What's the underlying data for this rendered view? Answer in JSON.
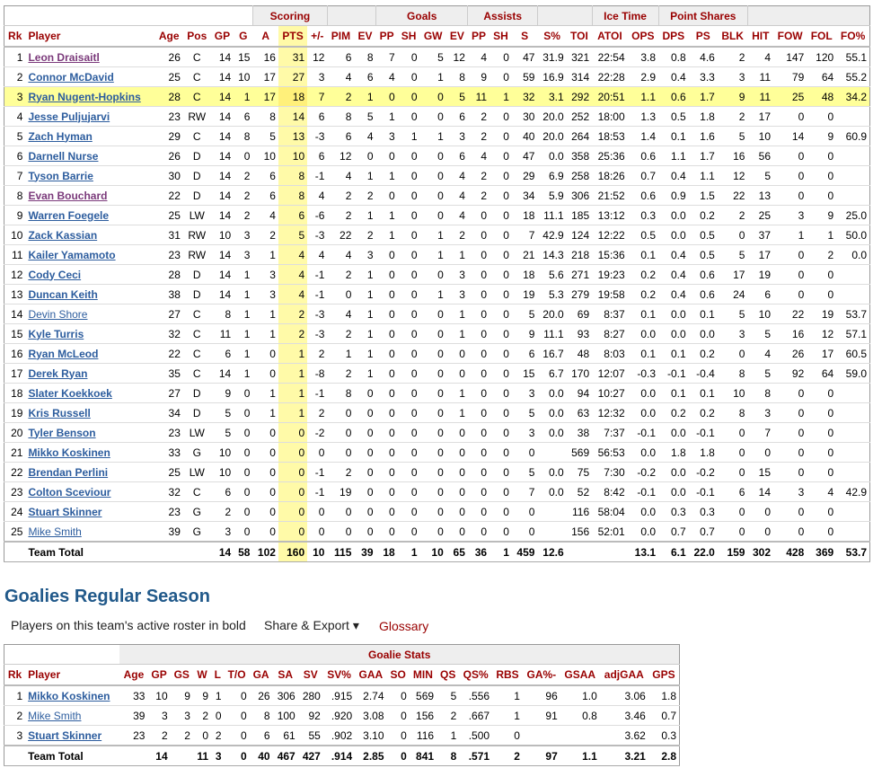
{
  "skaters": {
    "groups": [
      {
        "label": "",
        "span": 6
      },
      {
        "label": "Scoring",
        "span": 3
      },
      {
        "label": "",
        "span": 2
      },
      {
        "label": "Goals",
        "span": 4
      },
      {
        "label": "Assists",
        "span": 3
      },
      {
        "label": "",
        "span": 2
      },
      {
        "label": "Ice Time",
        "span": 2
      },
      {
        "label": "Point Shares",
        "span": 3
      },
      {
        "label": "",
        "span": 5
      }
    ],
    "columns": [
      "Rk",
      "Player",
      "Age",
      "Pos",
      "GP",
      "G",
      "A",
      "PTS",
      "+/-",
      "PIM",
      "EV",
      "PP",
      "SH",
      "GW",
      "EV",
      "PP",
      "SH",
      "S",
      "S%",
      "TOI",
      "ATOI",
      "OPS",
      "DPS",
      "PS",
      "BLK",
      "HIT",
      "FOW",
      "FOL",
      "FO%"
    ],
    "rows": [
      {
        "cells": [
          "1",
          "Leon Draisaitl",
          "26",
          "C",
          "14",
          "15",
          "16",
          "31",
          "12",
          "6",
          "8",
          "7",
          "0",
          "5",
          "12",
          "4",
          "0",
          "47",
          "31.9",
          "321",
          "22:54",
          "3.8",
          "0.8",
          "4.6",
          "2",
          "4",
          "147",
          "120",
          "55.1"
        ],
        "style": "pu"
      },
      {
        "cells": [
          "2",
          "Connor McDavid",
          "25",
          "C",
          "14",
          "10",
          "17",
          "27",
          "3",
          "4",
          "6",
          "4",
          "0",
          "1",
          "8",
          "9",
          "0",
          "59",
          "16.9",
          "314",
          "22:28",
          "2.9",
          "0.4",
          "3.3",
          "3",
          "11",
          "79",
          "64",
          "55.2"
        ],
        "style": ""
      },
      {
        "cells": [
          "3",
          "Ryan Nugent-Hopkins",
          "28",
          "C",
          "14",
          "1",
          "17",
          "18",
          "7",
          "2",
          "1",
          "0",
          "0",
          "0",
          "5",
          "11",
          "1",
          "32",
          "3.1",
          "292",
          "20:51",
          "1.1",
          "0.6",
          "1.7",
          "9",
          "11",
          "25",
          "48",
          "34.2"
        ],
        "style": "hl"
      },
      {
        "cells": [
          "4",
          "Jesse Puljujarvi",
          "23",
          "RW",
          "14",
          "6",
          "8",
          "14",
          "6",
          "8",
          "5",
          "1",
          "0",
          "0",
          "6",
          "2",
          "0",
          "30",
          "20.0",
          "252",
          "18:00",
          "1.3",
          "0.5",
          "1.8",
          "2",
          "17",
          "0",
          "0",
          ""
        ],
        "style": ""
      },
      {
        "cells": [
          "5",
          "Zach Hyman",
          "29",
          "C",
          "14",
          "8",
          "5",
          "13",
          "-3",
          "6",
          "4",
          "3",
          "1",
          "1",
          "3",
          "2",
          "0",
          "40",
          "20.0",
          "264",
          "18:53",
          "1.4",
          "0.1",
          "1.6",
          "5",
          "10",
          "14",
          "9",
          "60.9"
        ],
        "style": ""
      },
      {
        "cells": [
          "6",
          "Darnell Nurse",
          "26",
          "D",
          "14",
          "0",
          "10",
          "10",
          "6",
          "12",
          "0",
          "0",
          "0",
          "0",
          "6",
          "4",
          "0",
          "47",
          "0.0",
          "358",
          "25:36",
          "0.6",
          "1.1",
          "1.7",
          "16",
          "56",
          "0",
          "0",
          ""
        ],
        "style": ""
      },
      {
        "cells": [
          "7",
          "Tyson Barrie",
          "30",
          "D",
          "14",
          "2",
          "6",
          "8",
          "-1",
          "4",
          "1",
          "1",
          "0",
          "0",
          "4",
          "2",
          "0",
          "29",
          "6.9",
          "258",
          "18:26",
          "0.7",
          "0.4",
          "1.1",
          "12",
          "5",
          "0",
          "0",
          ""
        ],
        "style": ""
      },
      {
        "cells": [
          "8",
          "Evan Bouchard",
          "22",
          "D",
          "14",
          "2",
          "6",
          "8",
          "4",
          "2",
          "2",
          "0",
          "0",
          "0",
          "4",
          "2",
          "0",
          "34",
          "5.9",
          "306",
          "21:52",
          "0.6",
          "0.9",
          "1.5",
          "22",
          "13",
          "0",
          "0",
          ""
        ],
        "style": "pu"
      },
      {
        "cells": [
          "9",
          "Warren Foegele",
          "25",
          "LW",
          "14",
          "2",
          "4",
          "6",
          "-6",
          "2",
          "1",
          "1",
          "0",
          "0",
          "4",
          "0",
          "0",
          "18",
          "11.1",
          "185",
          "13:12",
          "0.3",
          "0.0",
          "0.2",
          "2",
          "25",
          "3",
          "9",
          "25.0"
        ],
        "style": ""
      },
      {
        "cells": [
          "10",
          "Zack Kassian",
          "31",
          "RW",
          "10",
          "3",
          "2",
          "5",
          "-3",
          "22",
          "2",
          "1",
          "0",
          "1",
          "2",
          "0",
          "0",
          "7",
          "42.9",
          "124",
          "12:22",
          "0.5",
          "0.0",
          "0.5",
          "0",
          "37",
          "1",
          "1",
          "50.0"
        ],
        "style": ""
      },
      {
        "cells": [
          "11",
          "Kailer Yamamoto",
          "23",
          "RW",
          "14",
          "3",
          "1",
          "4",
          "4",
          "4",
          "3",
          "0",
          "0",
          "1",
          "1",
          "0",
          "0",
          "21",
          "14.3",
          "218",
          "15:36",
          "0.1",
          "0.4",
          "0.5",
          "5",
          "17",
          "0",
          "2",
          "0.0"
        ],
        "style": ""
      },
      {
        "cells": [
          "12",
          "Cody Ceci",
          "28",
          "D",
          "14",
          "1",
          "3",
          "4",
          "-1",
          "2",
          "1",
          "0",
          "0",
          "0",
          "3",
          "0",
          "0",
          "18",
          "5.6",
          "271",
          "19:23",
          "0.2",
          "0.4",
          "0.6",
          "17",
          "19",
          "0",
          "0",
          ""
        ],
        "style": ""
      },
      {
        "cells": [
          "13",
          "Duncan Keith",
          "38",
          "D",
          "14",
          "1",
          "3",
          "4",
          "-1",
          "0",
          "1",
          "0",
          "0",
          "1",
          "3",
          "0",
          "0",
          "19",
          "5.3",
          "279",
          "19:58",
          "0.2",
          "0.4",
          "0.6",
          "24",
          "6",
          "0",
          "0",
          ""
        ],
        "style": ""
      },
      {
        "cells": [
          "14",
          "Devin Shore",
          "27",
          "C",
          "8",
          "1",
          "1",
          "2",
          "-3",
          "4",
          "1",
          "0",
          "0",
          "0",
          "1",
          "0",
          "0",
          "5",
          "20.0",
          "69",
          "8:37",
          "0.1",
          "0.0",
          "0.1",
          "5",
          "10",
          "22",
          "19",
          "53.7"
        ],
        "style": "np"
      },
      {
        "cells": [
          "15",
          "Kyle Turris",
          "32",
          "C",
          "11",
          "1",
          "1",
          "2",
          "-3",
          "2",
          "1",
          "0",
          "0",
          "0",
          "1",
          "0",
          "0",
          "9",
          "11.1",
          "93",
          "8:27",
          "0.0",
          "0.0",
          "0.0",
          "3",
          "5",
          "16",
          "12",
          "57.1"
        ],
        "style": ""
      },
      {
        "cells": [
          "16",
          "Ryan McLeod",
          "22",
          "C",
          "6",
          "1",
          "0",
          "1",
          "2",
          "1",
          "1",
          "0",
          "0",
          "0",
          "0",
          "0",
          "0",
          "6",
          "16.7",
          "48",
          "8:03",
          "0.1",
          "0.1",
          "0.2",
          "0",
          "4",
          "26",
          "17",
          "60.5"
        ],
        "style": ""
      },
      {
        "cells": [
          "17",
          "Derek Ryan",
          "35",
          "C",
          "14",
          "1",
          "0",
          "1",
          "-8",
          "2",
          "1",
          "0",
          "0",
          "0",
          "0",
          "0",
          "0",
          "15",
          "6.7",
          "170",
          "12:07",
          "-0.3",
          "-0.1",
          "-0.4",
          "8",
          "5",
          "92",
          "64",
          "59.0"
        ],
        "style": ""
      },
      {
        "cells": [
          "18",
          "Slater Koekkoek",
          "27",
          "D",
          "9",
          "0",
          "1",
          "1",
          "-1",
          "8",
          "0",
          "0",
          "0",
          "0",
          "1",
          "0",
          "0",
          "3",
          "0.0",
          "94",
          "10:27",
          "0.0",
          "0.1",
          "0.1",
          "10",
          "8",
          "0",
          "0",
          ""
        ],
        "style": ""
      },
      {
        "cells": [
          "19",
          "Kris Russell",
          "34",
          "D",
          "5",
          "0",
          "1",
          "1",
          "2",
          "0",
          "0",
          "0",
          "0",
          "0",
          "1",
          "0",
          "0",
          "5",
          "0.0",
          "63",
          "12:32",
          "0.0",
          "0.2",
          "0.2",
          "8",
          "3",
          "0",
          "0",
          ""
        ],
        "style": ""
      },
      {
        "cells": [
          "20",
          "Tyler Benson",
          "23",
          "LW",
          "5",
          "0",
          "0",
          "0",
          "-2",
          "0",
          "0",
          "0",
          "0",
          "0",
          "0",
          "0",
          "0",
          "3",
          "0.0",
          "38",
          "7:37",
          "-0.1",
          "0.0",
          "-0.1",
          "0",
          "7",
          "0",
          "0",
          ""
        ],
        "style": ""
      },
      {
        "cells": [
          "21",
          "Mikko Koskinen",
          "33",
          "G",
          "10",
          "0",
          "0",
          "0",
          "0",
          "0",
          "0",
          "0",
          "0",
          "0",
          "0",
          "0",
          "0",
          "0",
          "",
          "569",
          "56:53",
          "0.0",
          "1.8",
          "1.8",
          "0",
          "0",
          "0",
          "0",
          ""
        ],
        "style": ""
      },
      {
        "cells": [
          "22",
          "Brendan Perlini",
          "25",
          "LW",
          "10",
          "0",
          "0",
          "0",
          "-1",
          "2",
          "0",
          "0",
          "0",
          "0",
          "0",
          "0",
          "0",
          "5",
          "0.0",
          "75",
          "7:30",
          "-0.2",
          "0.0",
          "-0.2",
          "0",
          "15",
          "0",
          "0",
          ""
        ],
        "style": ""
      },
      {
        "cells": [
          "23",
          "Colton Sceviour",
          "32",
          "C",
          "6",
          "0",
          "0",
          "0",
          "-1",
          "19",
          "0",
          "0",
          "0",
          "0",
          "0",
          "0",
          "0",
          "7",
          "0.0",
          "52",
          "8:42",
          "-0.1",
          "0.0",
          "-0.1",
          "6",
          "14",
          "3",
          "4",
          "42.9"
        ],
        "style": ""
      },
      {
        "cells": [
          "24",
          "Stuart Skinner",
          "23",
          "G",
          "2",
          "0",
          "0",
          "0",
          "0",
          "0",
          "0",
          "0",
          "0",
          "0",
          "0",
          "0",
          "0",
          "0",
          "",
          "116",
          "58:04",
          "0.0",
          "0.3",
          "0.3",
          "0",
          "0",
          "0",
          "0",
          ""
        ],
        "style": ""
      },
      {
        "cells": [
          "25",
          "Mike Smith",
          "39",
          "G",
          "3",
          "0",
          "0",
          "0",
          "0",
          "0",
          "0",
          "0",
          "0",
          "0",
          "0",
          "0",
          "0",
          "0",
          "",
          "156",
          "52:01",
          "0.0",
          "0.7",
          "0.7",
          "0",
          "0",
          "0",
          "0",
          ""
        ],
        "style": "np"
      }
    ],
    "total": [
      "",
      "Team Total",
      "",
      "",
      "14",
      "58",
      "102",
      "160",
      "10",
      "115",
      "39",
      "18",
      "1",
      "10",
      "65",
      "36",
      "1",
      "459",
      "12.6",
      "",
      "",
      "13.1",
      "6.1",
      "22.0",
      "159",
      "302",
      "428",
      "369",
      "53.7"
    ]
  },
  "goalies_section": {
    "title": "Goalies Regular Season",
    "roster_note": "Players on this team's active roster in bold",
    "share_export": "Share & Export ▾",
    "glossary": "Glossary"
  },
  "goalies": {
    "group_label": "Goalie Stats",
    "columns": [
      "Rk",
      "Player",
      "Age",
      "GP",
      "GS",
      "W",
      "L",
      "T/O",
      "GA",
      "SA",
      "SV",
      "SV%",
      "GAA",
      "SO",
      "MIN",
      "QS",
      "QS%",
      "RBS",
      "GA%-",
      "GSAA",
      "adjGAA",
      "GPS"
    ],
    "rows": [
      {
        "cells": [
          "1",
          "Mikko Koskinen",
          "33",
          "10",
          "9",
          "9",
          "1",
          "0",
          "26",
          "306",
          "280",
          ".915",
          "2.74",
          "0",
          "569",
          "5",
          ".556",
          "1",
          "96",
          "1.0",
          "3.06",
          "1.8"
        ],
        "style": ""
      },
      {
        "cells": [
          "2",
          "Mike Smith",
          "39",
          "3",
          "3",
          "2",
          "0",
          "0",
          "8",
          "100",
          "92",
          ".920",
          "3.08",
          "0",
          "156",
          "2",
          ".667",
          "1",
          "91",
          "0.8",
          "3.46",
          "0.7"
        ],
        "style": "np"
      },
      {
        "cells": [
          "3",
          "Stuart Skinner",
          "23",
          "2",
          "2",
          "0",
          "2",
          "0",
          "6",
          "61",
          "55",
          ".902",
          "3.10",
          "0",
          "116",
          "1",
          ".500",
          "0",
          "",
          "",
          "3.62",
          "0.3"
        ],
        "style": ""
      }
    ],
    "total": [
      "",
      "Team Total",
      "",
      "14",
      "",
      "11",
      "3",
      "0",
      "40",
      "467",
      "427",
      ".914",
      "2.85",
      "0",
      "841",
      "8",
      ".571",
      "2",
      "97",
      "1.1",
      "3.21",
      "2.8"
    ]
  },
  "colors": {
    "header_text": "#990000",
    "link": "#2d5d9e",
    "highlight_row": "#ffff99",
    "pts_column": "#fffaa8",
    "section_title": "#21598a"
  }
}
